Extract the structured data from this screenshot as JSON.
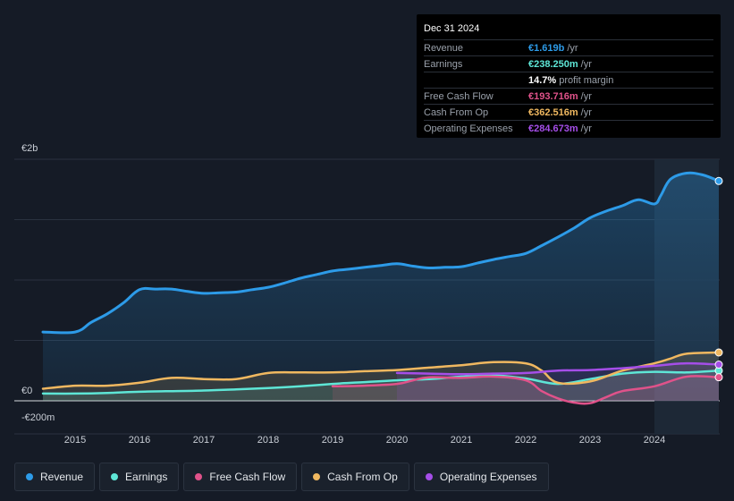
{
  "tooltip": {
    "date": "Dec 31 2024",
    "rows": [
      {
        "label": "Revenue",
        "value": "€1.619b",
        "unit": "/yr",
        "color": "#2d9be8"
      },
      {
        "label": "Earnings",
        "value": "€238.250m",
        "unit": "/yr",
        "color": "#5ee6d6"
      },
      {
        "label": "",
        "value": "14.7%",
        "unit": "profit margin",
        "color": "#ffffff"
      },
      {
        "label": "Free Cash Flow",
        "value": "€193.716m",
        "unit": "/yr",
        "color": "#e0528a"
      },
      {
        "label": "Cash From Op",
        "value": "€362.516m",
        "unit": "/yr",
        "color": "#f0b860"
      },
      {
        "label": "Operating Expenses",
        "value": "€284.673m",
        "unit": "/yr",
        "color": "#a54ee8"
      }
    ]
  },
  "legend": [
    {
      "label": "Revenue",
      "color": "#2d9be8"
    },
    {
      "label": "Earnings",
      "color": "#5ee6d6"
    },
    {
      "label": "Free Cash Flow",
      "color": "#e0528a"
    },
    {
      "label": "Cash From Op",
      "color": "#f0b860"
    },
    {
      "label": "Operating Expenses",
      "color": "#a54ee8"
    }
  ],
  "chart_data": {
    "type": "line",
    "title": "",
    "xlabel": "",
    "ylabel": "",
    "ylim": [
      -200,
      2000
    ],
    "y_ticks": [
      {
        "value": 2000,
        "label": "€2b"
      },
      {
        "value": 0,
        "label": "€0"
      },
      {
        "value": -200,
        "label": "-€200m"
      }
    ],
    "x_ticks": [
      "2015",
      "2016",
      "2017",
      "2018",
      "2019",
      "2020",
      "2021",
      "2022",
      "2023",
      "2024"
    ],
    "xlim": [
      2014.5,
      2025.0
    ],
    "forecast_start": 2024.0,
    "series": [
      {
        "name": "Revenue",
        "color": "#2d9be8",
        "fill": true,
        "x": [
          2014.5,
          2015.0,
          2015.25,
          2015.5,
          2015.75,
          2016.0,
          2016.25,
          2016.5,
          2016.75,
          2017.0,
          2017.25,
          2017.5,
          2017.75,
          2018.0,
          2018.25,
          2018.5,
          2018.75,
          2019.0,
          2019.25,
          2019.5,
          2019.75,
          2020.0,
          2020.25,
          2020.5,
          2020.75,
          2021.0,
          2021.25,
          2021.5,
          2021.75,
          2022.0,
          2022.25,
          2022.5,
          2022.75,
          2023.0,
          2023.25,
          2023.5,
          2023.75,
          2024.0,
          2024.1,
          2024.25,
          2024.5,
          2024.75,
          2025.0
        ],
        "values": [
          570,
          570,
          650,
          720,
          810,
          920,
          925,
          925,
          905,
          890,
          895,
          900,
          920,
          940,
          975,
          1015,
          1045,
          1075,
          1090,
          1105,
          1120,
          1135,
          1115,
          1100,
          1105,
          1110,
          1140,
          1170,
          1195,
          1220,
          1285,
          1355,
          1430,
          1515,
          1570,
          1615,
          1665,
          1630,
          1700,
          1835,
          1885,
          1870,
          1820
        ]
      },
      {
        "name": "Earnings",
        "color": "#5ee6d6",
        "fill": true,
        "x": [
          2014.5,
          2015.0,
          2015.5,
          2016.0,
          2016.5,
          2017.0,
          2017.5,
          2018.0,
          2018.5,
          2019.0,
          2019.5,
          2020.0,
          2020.5,
          2021.0,
          2021.5,
          2022.0,
          2022.5,
          2023.0,
          2023.5,
          2024.0,
          2024.5,
          2025.0
        ],
        "values": [
          60,
          60,
          65,
          75,
          80,
          85,
          95,
          105,
          120,
          140,
          155,
          170,
          180,
          200,
          210,
          185,
          140,
          180,
          225,
          240,
          235,
          250
        ]
      },
      {
        "name": "Free Cash Flow",
        "color": "#e0528a",
        "fill": true,
        "x": [
          2019.0,
          2019.5,
          2020.0,
          2020.25,
          2020.5,
          2021.0,
          2021.5,
          2022.0,
          2022.25,
          2022.5,
          2022.75,
          2023.0,
          2023.25,
          2023.5,
          2024.0,
          2024.5,
          2025.0
        ],
        "values": [
          120,
          125,
          140,
          170,
          195,
          190,
          200,
          170,
          80,
          20,
          -15,
          -20,
          30,
          80,
          120,
          200,
          195
        ]
      },
      {
        "name": "Cash From Op",
        "color": "#f0b860",
        "fill": true,
        "x": [
          2014.5,
          2015.0,
          2015.5,
          2016.0,
          2016.5,
          2017.0,
          2017.5,
          2018.0,
          2018.5,
          2019.0,
          2019.5,
          2020.0,
          2020.5,
          2021.0,
          2021.5,
          2022.0,
          2022.25,
          2022.5,
          2023.0,
          2023.5,
          2024.0,
          2024.25,
          2024.5,
          2025.0
        ],
        "values": [
          100,
          125,
          125,
          150,
          190,
          180,
          180,
          230,
          235,
          235,
          245,
          255,
          275,
          295,
          320,
          310,
          250,
          150,
          160,
          250,
          310,
          350,
          390,
          400
        ]
      },
      {
        "name": "Operating Expenses",
        "color": "#a54ee8",
        "fill": true,
        "x": [
          2020.0,
          2020.5,
          2021.0,
          2021.5,
          2022.0,
          2022.5,
          2023.0,
          2023.5,
          2024.0,
          2024.5,
          2025.0
        ],
        "values": [
          230,
          225,
          220,
          225,
          230,
          250,
          255,
          270,
          290,
          310,
          300
        ]
      }
    ]
  }
}
